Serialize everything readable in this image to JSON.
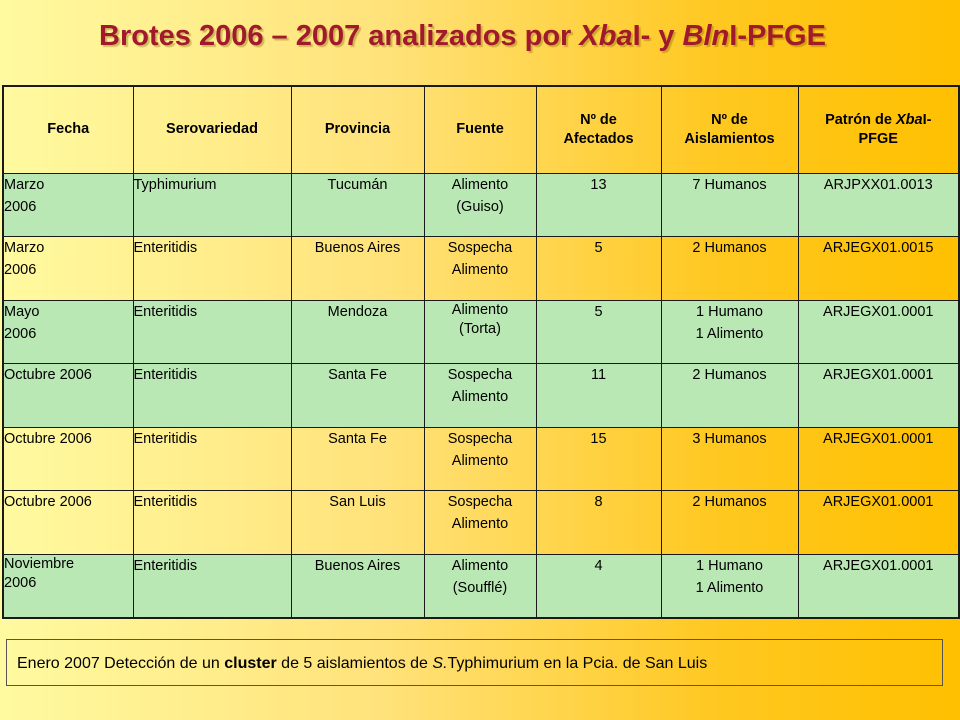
{
  "title": {
    "part1": "Brotes 2006 – 2007 analizados por ",
    "em1": "Xba",
    "part2": "I- y ",
    "em2": "Bln",
    "part3": "I-PFGE"
  },
  "table": {
    "headers": {
      "fecha": "Fecha",
      "serovariedad": "Serovariedad",
      "provincia": "Provincia",
      "fuente": "Fuente",
      "afectados_1": "Nº de",
      "afectados_2": "Afectados",
      "aislamientos_1": "Nº de",
      "aislamientos_2": "Aislamientos",
      "patron_1": "Patrón de ",
      "patron_em": "Xba",
      "patron_2": "I-",
      "patron_3": "PFGE"
    },
    "rows": [
      {
        "fecha_1": "Marzo",
        "fecha_2": "2006",
        "serovariedad": "Typhimurium",
        "provincia": "Tucumán",
        "fuente_1": "Alimento",
        "fuente_2": "(Guiso)",
        "afectados": "13",
        "aislamientos_1": "7 Humanos",
        "aislamientos_2": "",
        "patron": "ARJPXX01.0013"
      },
      {
        "fecha_1": "Marzo",
        "fecha_2": "2006",
        "serovariedad": "Enteritidis",
        "provincia": "Buenos Aires",
        "fuente_1": "Sospecha",
        "fuente_2": "Alimento",
        "afectados": "5",
        "aislamientos_1": "2 Humanos",
        "aislamientos_2": "",
        "patron": "ARJEGX01.0015"
      },
      {
        "fecha_1": "Mayo",
        "fecha_2": "2006",
        "serovariedad": "Enteritidis",
        "provincia": "Mendoza",
        "fuente_1": "Alimento",
        "fuente_2": "(Torta)",
        "afectados": "5",
        "aislamientos_1": "1 Humano",
        "aislamientos_2": "1 Alimento",
        "patron": "ARJEGX01.0001"
      },
      {
        "fecha_1": "Octubre 2006",
        "fecha_2": "",
        "serovariedad": "Enteritidis",
        "provincia": "Santa Fe",
        "fuente_1": "Sospecha",
        "fuente_2": "Alimento",
        "afectados": "11",
        "aislamientos_1": "2 Humanos",
        "aislamientos_2": "",
        "patron": "ARJEGX01.0001"
      },
      {
        "fecha_1": "Octubre 2006",
        "fecha_2": "",
        "serovariedad": "Enteritidis",
        "provincia": "Santa Fe",
        "fuente_1": "Sospecha",
        "fuente_2": "Alimento",
        "afectados": "15",
        "aislamientos_1": "3 Humanos",
        "aislamientos_2": "",
        "patron": "ARJEGX01.0001"
      },
      {
        "fecha_1": "Octubre 2006",
        "fecha_2": "",
        "serovariedad": "Enteritidis",
        "provincia": "San Luis",
        "fuente_1": "Sospecha",
        "fuente_2": "Alimento",
        "afectados": "8",
        "aislamientos_1": "2 Humanos",
        "aislamientos_2": "",
        "patron": "ARJEGX01.0001"
      },
      {
        "fecha_1": "Noviembre",
        "fecha_2": "2006",
        "serovariedad": "Enteritidis",
        "provincia": "Buenos Aires",
        "fuente_1": "Alimento",
        "fuente_2": "(Soufflé)",
        "afectados": "4",
        "aislamientos_1": "1 Humano",
        "aislamientos_2": "1 Alimento",
        "patron": "ARJEGX01.0001"
      }
    ]
  },
  "note": {
    "part1": "Enero 2007 Detección de un ",
    "bold": "cluster",
    "part2": " de 5 aislamientos de ",
    "em": "S.",
    "part3": "Typhimurium en la Pcia. de San Luis"
  },
  "colors": {
    "title": "#a0192c",
    "green_row": "#b9e8b4",
    "background_start": "#fffaa0",
    "background_end": "#ffc000"
  }
}
